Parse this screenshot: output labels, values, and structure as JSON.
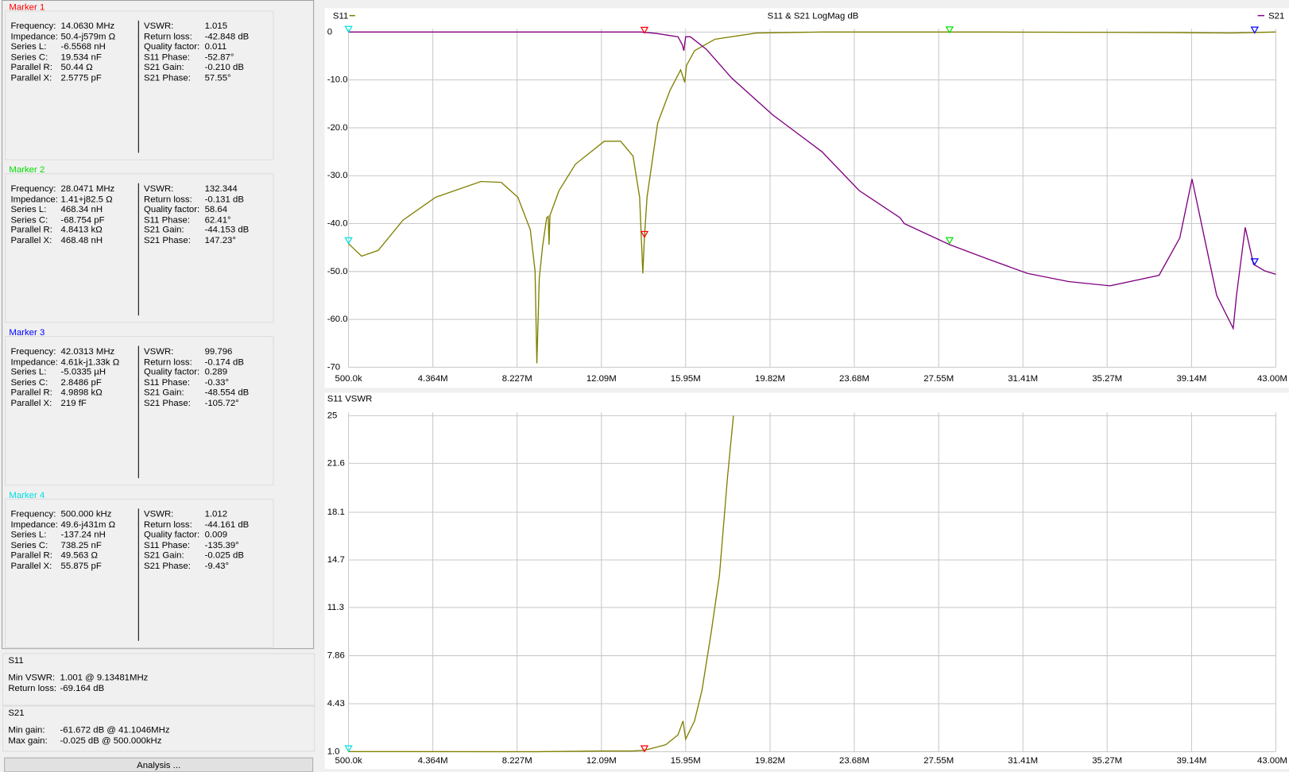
{
  "marker_panel": [
    {
      "title": "Marker 1",
      "color": "#ff0000",
      "left": [
        {
          "label": "Frequency:",
          "value": "14.0630 MHz"
        },
        {
          "label": "Impedance:",
          "value": "50.4-j579m Ω"
        },
        {
          "label": "Series L:",
          "value": "-6.5568 nH"
        },
        {
          "label": "Series C:",
          "value": "19.534 nF"
        },
        {
          "label": "Parallel R:",
          "value": "50.44 Ω"
        },
        {
          "label": "Parallel X:",
          "value": "2.5775 pF"
        }
      ],
      "right": [
        {
          "label": "VSWR:",
          "value": "1.015"
        },
        {
          "label": "Return loss:",
          "value": "-42.848 dB"
        },
        {
          "label": "Quality factor:",
          "value": "0.011"
        },
        {
          "label": "S11 Phase:",
          "value": "-52.87°"
        },
        {
          "label": "S21 Gain:",
          "value": "-0.210 dB"
        },
        {
          "label": "S21 Phase:",
          "value": "57.55°"
        }
      ]
    },
    {
      "title": "Marker 2",
      "color": "#00e000",
      "left": [
        {
          "label": "Frequency:",
          "value": "28.0471 MHz"
        },
        {
          "label": "Impedance:",
          "value": "1.41+j82.5 Ω"
        },
        {
          "label": "Series L:",
          "value": "468.34 nH"
        },
        {
          "label": "Series C:",
          "value": "-68.754 pF"
        },
        {
          "label": "Parallel R:",
          "value": "4.8413 kΩ"
        },
        {
          "label": "Parallel X:",
          "value": "468.48 nH"
        }
      ],
      "right": [
        {
          "label": "VSWR:",
          "value": "132.344"
        },
        {
          "label": "Return loss:",
          "value": "-0.131 dB"
        },
        {
          "label": "Quality factor:",
          "value": "58.64"
        },
        {
          "label": "S11 Phase:",
          "value": "62.41°"
        },
        {
          "label": "S21 Gain:",
          "value": "-44.153 dB"
        },
        {
          "label": "S21 Phase:",
          "value": "147.23°"
        }
      ]
    },
    {
      "title": "Marker 3",
      "color": "#0000ff",
      "left": [
        {
          "label": "Frequency:",
          "value": "42.0313 MHz"
        },
        {
          "label": "Impedance:",
          "value": "4.61k-j1.33k Ω"
        },
        {
          "label": "Series L:",
          "value": "-5.0335 µH"
        },
        {
          "label": "Series C:",
          "value": "2.8486 pF"
        },
        {
          "label": "Parallel R:",
          "value": "4.9898 kΩ"
        },
        {
          "label": "Parallel X:",
          "value": "219 fF"
        }
      ],
      "right": [
        {
          "label": "VSWR:",
          "value": "99.796"
        },
        {
          "label": "Return loss:",
          "value": "-0.174 dB"
        },
        {
          "label": "Quality factor:",
          "value": "0.289"
        },
        {
          "label": "S11 Phase:",
          "value": "-0.33°"
        },
        {
          "label": "S21 Gain:",
          "value": "-48.554 dB"
        },
        {
          "label": "S21 Phase:",
          "value": "-105.72°"
        }
      ]
    },
    {
      "title": "Marker 4",
      "color": "#00e0e0",
      "left": [
        {
          "label": "Frequency:",
          "value": "500.000 kHz"
        },
        {
          "label": "Impedance:",
          "value": "49.6-j431m Ω"
        },
        {
          "label": "Series L:",
          "value": "-137.24 nH"
        },
        {
          "label": "Series C:",
          "value": "738.25 nF"
        },
        {
          "label": "Parallel R:",
          "value": "49.563 Ω"
        },
        {
          "label": "Parallel X:",
          "value": "55.875 pF"
        }
      ],
      "right": [
        {
          "label": "VSWR:",
          "value": "1.012"
        },
        {
          "label": "Return loss:",
          "value": "-44.161 dB"
        },
        {
          "label": "Quality factor:",
          "value": "0.009"
        },
        {
          "label": "S11 Phase:",
          "value": "-135.39°"
        },
        {
          "label": "S21 Gain:",
          "value": "-0.025 dB"
        },
        {
          "label": "S21 Phase:",
          "value": "-9.43°"
        }
      ]
    }
  ],
  "summaries": [
    {
      "title": "S11",
      "rows": [
        {
          "label": "Min VSWR:",
          "value": "1.001 @ 9.13481MHz"
        },
        {
          "label": "Return loss:",
          "value": "-69.164 dB"
        }
      ]
    },
    {
      "title": "S21",
      "rows": [
        {
          "label": "Min gain:",
          "value": "-61.672 dB @ 41.1046MHz"
        },
        {
          "label": "Max gain:",
          "value": "-0.025 dB @ 500.000kHz"
        }
      ]
    }
  ],
  "button": "Analysis ...",
  "chart_data": [
    {
      "type": "line",
      "title": "S11 & S21 LogMag dB",
      "legend": true,
      "grid": true,
      "xlim": [
        0.5,
        43
      ],
      "xticks": [
        {
          "value": 0.5,
          "label": "500.0k"
        },
        {
          "value": 4.364,
          "label": "4.364M"
        },
        {
          "value": 8.227,
          "label": "8.227M"
        },
        {
          "value": 12.09,
          "label": "12.09M"
        },
        {
          "value": 15.95,
          "label": "15.95M"
        },
        {
          "value": 19.82,
          "label": "19.82M"
        },
        {
          "value": 23.68,
          "label": "23.68M"
        },
        {
          "value": 27.55,
          "label": "27.55M"
        },
        {
          "value": 31.41,
          "label": "31.41M"
        },
        {
          "value": 35.27,
          "label": "35.27M"
        },
        {
          "value": 39.14,
          "label": "39.14M"
        },
        {
          "value": 43,
          "label": "43.00M"
        }
      ],
      "ylim": [
        -70,
        0
      ],
      "yticks": [
        0,
        {
          "value": -10,
          "label": "-10.0"
        },
        {
          "value": -20,
          "label": "-20.0"
        },
        {
          "value": -30,
          "label": "-30.0"
        },
        {
          "value": -40,
          "label": "-40.0"
        },
        {
          "value": -50,
          "label": "-50.0"
        },
        {
          "value": -60,
          "label": "-60.0"
        },
        -70
      ],
      "series": [
        {
          "name": "S11",
          "color": "#808000",
          "x": [
            0.5,
            1.1,
            1.86,
            2.99,
            4.49,
            6.57,
            7.5,
            8.26,
            8.83,
            9.05,
            9.13,
            9.24,
            9.39,
            9.58,
            9.65,
            9.69,
            9.73,
            10.15,
            10.9,
            12.22,
            12.97,
            13.54,
            13.84,
            13.99,
            14.06,
            14.18,
            14.67,
            15.23,
            15.72,
            15.91,
            15.99,
            16.36,
            17.3,
            19.19,
            22.2,
            30,
            38,
            41,
            43
          ],
          "values": [
            -44.2,
            -46.8,
            -45.6,
            -39.3,
            -34.5,
            -31.2,
            -31.4,
            -34.5,
            -41.3,
            -49.9,
            -69.2,
            -51.5,
            -44.8,
            -38.8,
            -38.5,
            -44.4,
            -38.3,
            -33.1,
            -27.6,
            -22.8,
            -22.8,
            -25.9,
            -34.5,
            -50.4,
            -43,
            -34.5,
            -19,
            -12.2,
            -7.9,
            -10.5,
            -7,
            -3.9,
            -1.5,
            -0.2,
            0,
            0,
            -0.1,
            -0.2,
            0
          ]
        },
        {
          "name": "S21",
          "color": "#800080",
          "x": [
            0.5,
            13.9,
            14.6,
            15.6,
            15.8,
            15.87,
            15.95,
            16.17,
            16.9,
            18.06,
            19.94,
            22.2,
            23.9,
            25.78,
            25.97,
            28.05,
            29.74,
            31.62,
            33.5,
            35.4,
            37.65,
            38.6,
            39.16,
            39.73,
            40.29,
            41.05,
            41.2,
            41.6,
            41.98,
            42.5,
            43
          ],
          "values": [
            0,
            0,
            -0.3,
            -1,
            -2.7,
            -3.9,
            -1,
            -1,
            -3.6,
            -9.6,
            -17.3,
            -25,
            -33.1,
            -38.8,
            -40,
            -44.4,
            -47.3,
            -50.4,
            -52.1,
            -53,
            -50.8,
            -43,
            -30.7,
            -43,
            -55,
            -61.9,
            -55,
            -40.8,
            -48.5,
            -49.9,
            -50.6
          ]
        }
      ],
      "markers": [
        {
          "color": "#ff0000",
          "x": 14.063,
          "values": [
            -42.848,
            -0.21
          ]
        },
        {
          "color": "#00e000",
          "x": 28.047,
          "values": [
            -0.131,
            -44.153
          ]
        },
        {
          "color": "#0000ff",
          "x": 42.031,
          "values": [
            -0.174,
            -48.554
          ]
        },
        {
          "color": "#00e0e0",
          "x": 0.5,
          "values": [
            -44.161,
            -0.025
          ]
        }
      ]
    },
    {
      "type": "line",
      "title": "S11 VSWR",
      "grid": true,
      "xlim": [
        0.5,
        43
      ],
      "xticks": [
        {
          "value": 0.5,
          "label": "500.0k"
        },
        {
          "value": 4.364,
          "label": "4.364M"
        },
        {
          "value": 8.227,
          "label": "8.227M"
        },
        {
          "value": 12.09,
          "label": "12.09M"
        },
        {
          "value": 15.95,
          "label": "15.95M"
        },
        {
          "value": 19.82,
          "label": "19.82M"
        },
        {
          "value": 23.68,
          "label": "23.68M"
        },
        {
          "value": 27.55,
          "label": "27.55M"
        },
        {
          "value": 31.41,
          "label": "31.41M"
        },
        {
          "value": 35.27,
          "label": "35.27M"
        },
        {
          "value": 39.14,
          "label": "39.14M"
        },
        {
          "value": 43,
          "label": "43.00M"
        }
      ],
      "ylim": [
        1,
        25
      ],
      "yticks": [
        {
          "value": 1,
          "label": "1.0"
        },
        4.43,
        7.86,
        11.3,
        14.7,
        18.1,
        21.6,
        25
      ],
      "series": [
        {
          "color": "#808000",
          "x": [
            0.5,
            9.13,
            12.0,
            13.5,
            14.06,
            15.04,
            15.6,
            15.83,
            15.95,
            16.36,
            16.7,
            17.12,
            17.5,
            17.87,
            18.14
          ],
          "values": [
            1.01,
            1.0,
            1.05,
            1.05,
            1.1,
            1.5,
            2.2,
            3.2,
            1.9,
            3.2,
            5.4,
            9.5,
            13.6,
            20.6,
            25
          ]
        }
      ],
      "markers": [
        {
          "color": "#00e0e0",
          "x": 0.5,
          "values": [
            1.012
          ]
        },
        {
          "color": "#ff0000",
          "x": 14.063,
          "values": [
            1.015
          ]
        }
      ]
    }
  ]
}
